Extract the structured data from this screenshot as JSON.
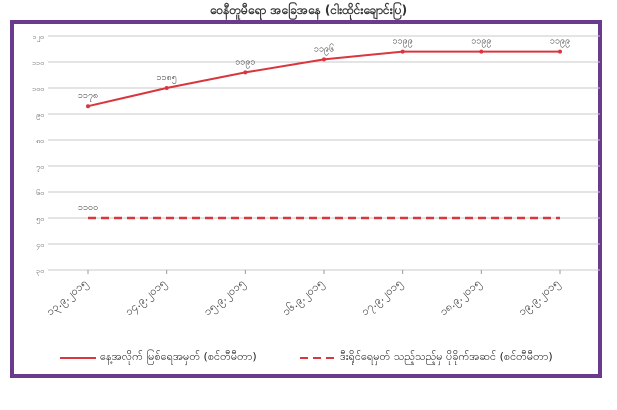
{
  "chart_data": {
    "type": "line",
    "title": "ဝေနီတူမီရော အခြေအနေ (ငါးထိုင်းချောင်းပြ)",
    "categories": [
      "၁၃.၉.၂၀၁၅",
      "၁၄.၉.၂၀၁၅",
      "၁၅.၉.၂၀၁၅",
      "၁၆.၉.၂၀၁၅",
      "၁၇.၉.၂၀၁၅",
      "၁၈.၉.၂၀၁၅",
      "၁၉.၉.၂၀၁၅"
    ],
    "y_ticks": [
      "၁၂၀",
      "၁၁၀",
      "၁၀၀",
      "၉၀",
      "၈၀",
      "၇၀",
      "၆၀",
      "၅၀",
      "၄၀",
      "၃၀"
    ],
    "series": [
      {
        "name": "နေ့အလိုက် မြစ်ရေအမှတ် (စင်တီမီတာ)",
        "color": "#d9363e",
        "style": "solid",
        "values": [
          93,
          100,
          106,
          111,
          114,
          114,
          114
        ],
        "labels": [
          "၁၁၇၈",
          "၁၁၈၅",
          "၁၁၉၁",
          "၁၁၉၆",
          "၁၁၉၉",
          "၁၁၉၉",
          "၁၁၉၉"
        ]
      },
      {
        "name": "ဒီးရိုင်ရေမှတ် သည့်သည့်မှ ပိုခိုက်အဆင် (စင်တီမီတာ)",
        "color": "#d9363e",
        "style": "dashed",
        "values": [
          50,
          50,
          50,
          50,
          50,
          50,
          50
        ],
        "labels": [
          "၁၁၀၀"
        ]
      }
    ],
    "ylim": [
      30,
      120
    ],
    "grid": true,
    "legend_position": "bottom"
  }
}
